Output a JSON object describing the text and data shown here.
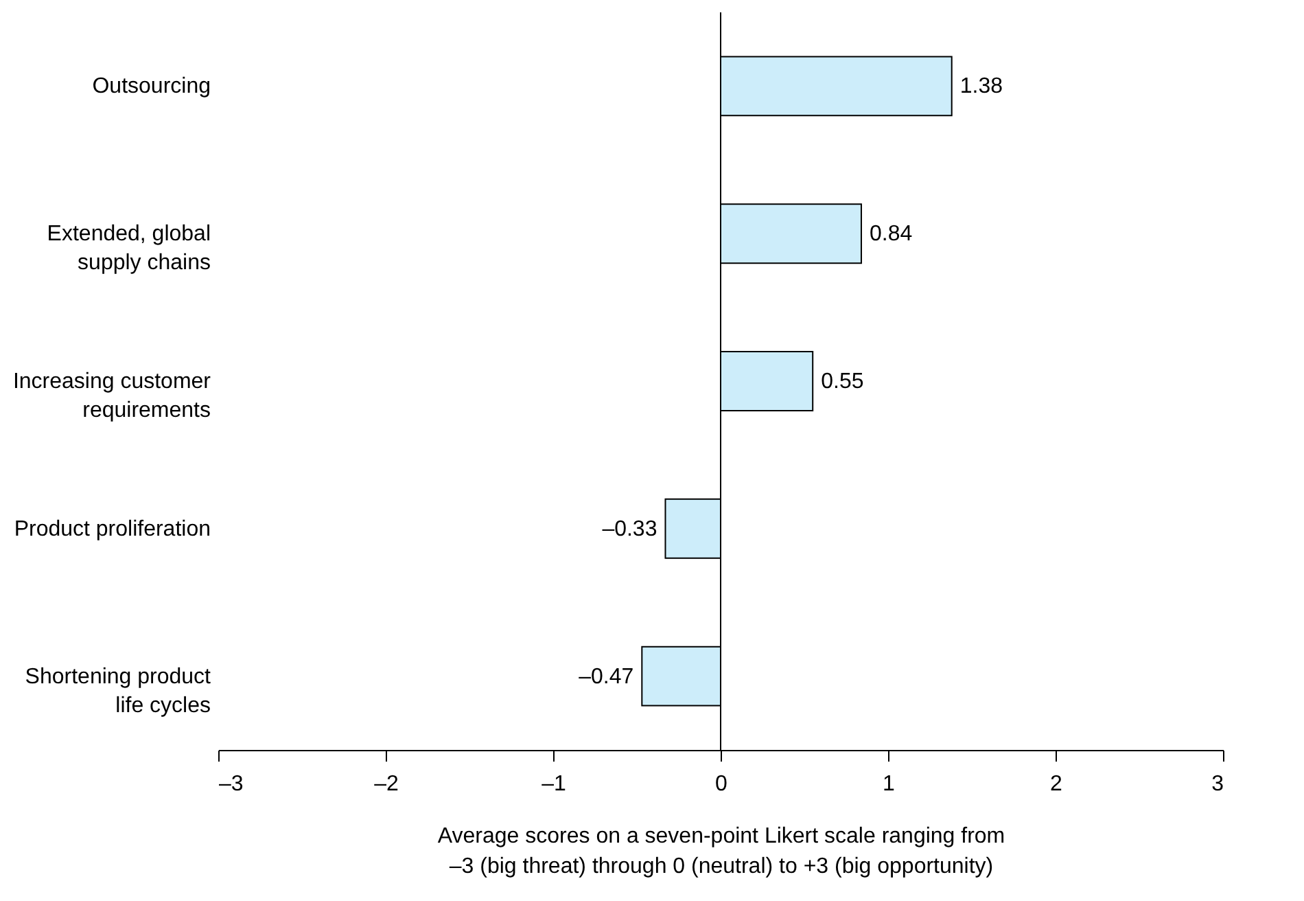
{
  "chart_data": {
    "type": "bar",
    "orientation": "horizontal",
    "categories": [
      "Outsourcing",
      "Extended, global supply chains",
      "Increasing customer requirements",
      "Product proliferation",
      "Shortening product life cycles"
    ],
    "values": [
      1.38,
      0.84,
      0.55,
      -0.33,
      -0.47
    ],
    "value_labels": [
      "1.38",
      "0.84",
      "0.55",
      "–0.33",
      "–0.47"
    ],
    "color": "#cdedfa",
    "xlim": [
      -3,
      3
    ],
    "xticks": [
      {
        "value": -3,
        "label": "–3"
      },
      {
        "value": -2,
        "label": "–2"
      },
      {
        "value": -1,
        "label": "–1"
      },
      0,
      1,
      2,
      3
    ],
    "xlabel": "Average scores on a seven-point Likert scale ranging from –3 (big threat) through 0 (neutral) to +3 (big opportunity)",
    "ref_lines": [
      {
        "axis": "x",
        "value": 0,
        "color": "#000000"
      }
    ],
    "grid": false
  }
}
